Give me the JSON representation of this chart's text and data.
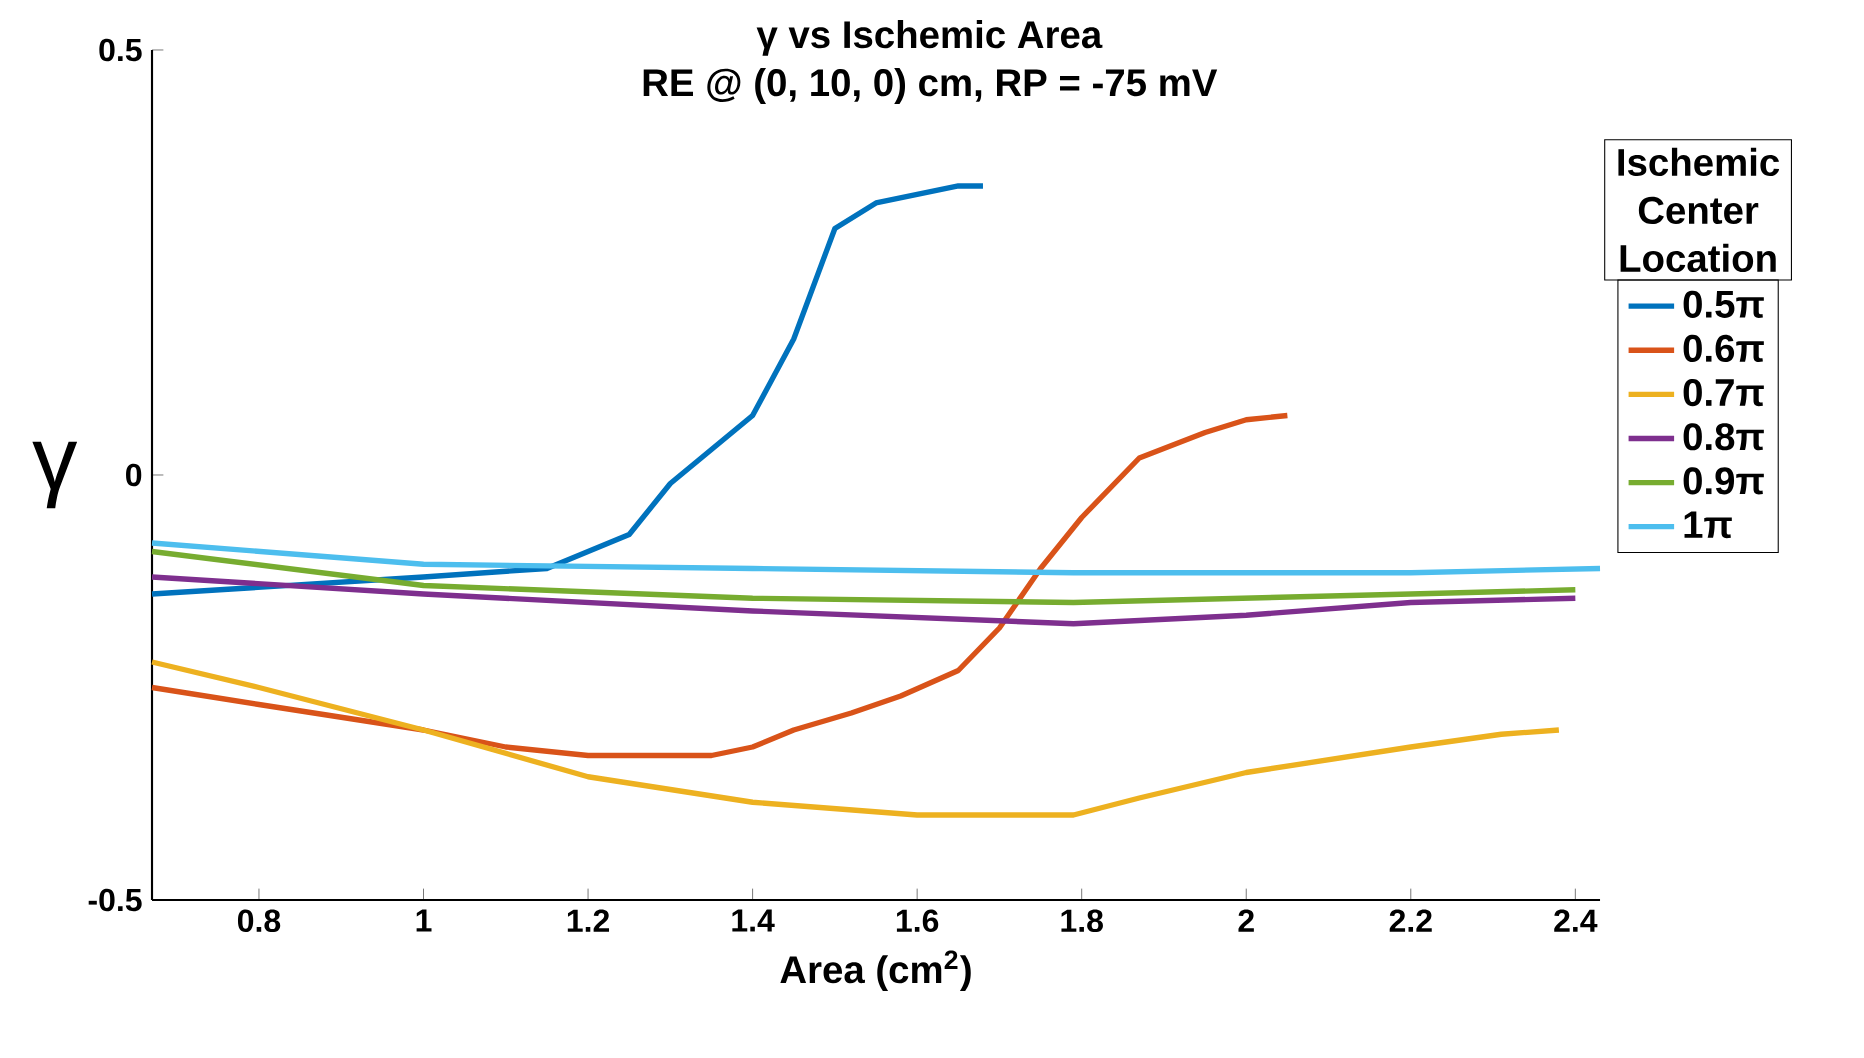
{
  "chart_data": {
    "type": "line",
    "title": "γ vs Ischemic Area",
    "subtitle": "RE @ (0, 10, 0) cm, RP = -75 mV",
    "xlabel": "Area (cm$^{2}$)",
    "ylabel": "γ",
    "legend_title": "Ischemic Center Location",
    "xlim": [
      0.67,
      2.43
    ],
    "ylim": [
      -0.5,
      0.5
    ],
    "xticks": [
      {
        "value": 0.8,
        "label": "0.8"
      },
      {
        "value": 1,
        "label": "1"
      },
      {
        "value": 1.2,
        "label": "1.2"
      },
      {
        "value": 1.4,
        "label": "1.4"
      },
      {
        "value": 1.6,
        "label": "1.6"
      },
      {
        "value": 1.8,
        "label": "1.8"
      },
      {
        "value": 2,
        "label": "2"
      },
      {
        "value": 2.2,
        "label": "2.2"
      },
      {
        "value": 2.4,
        "label": "2.4"
      }
    ],
    "yticks": [
      {
        "value": -0.5,
        "label": "-0.5"
      },
      {
        "value": 0,
        "label": "0"
      },
      {
        "value": 0.5,
        "label": "0.5"
      }
    ],
    "grid": false,
    "legend": "top right",
    "marker": "none",
    "line_style": "solid",
    "series": [
      {
        "name": "0.5π",
        "color": "#0072bd",
        "x": [
          0.67,
          1.0,
          1.15,
          1.2,
          1.25,
          1.3,
          1.35,
          1.4,
          1.45,
          1.5,
          1.55,
          1.6,
          1.65,
          1.68
        ],
        "values": [
          -0.14,
          -0.12,
          -0.11,
          -0.09,
          -0.07,
          -0.01,
          0.03,
          0.07,
          0.16,
          0.29,
          0.32,
          0.33,
          0.34,
          0.34
        ]
      },
      {
        "name": "0.6π",
        "color": "#d95319",
        "x": [
          0.67,
          0.8,
          1.0,
          1.1,
          1.2,
          1.28,
          1.35,
          1.4,
          1.45,
          1.52,
          1.58,
          1.65,
          1.7,
          1.75,
          1.8,
          1.87,
          1.95,
          2.0,
          2.05
        ],
        "values": [
          -0.25,
          -0.27,
          -0.3,
          -0.32,
          -0.33,
          -0.33,
          -0.33,
          -0.32,
          -0.3,
          -0.28,
          -0.26,
          -0.23,
          -0.18,
          -0.11,
          -0.05,
          0.02,
          0.05,
          0.065,
          0.07
        ]
      },
      {
        "name": "0.7π",
        "color": "#edb120",
        "x": [
          0.67,
          0.8,
          1.0,
          1.2,
          1.4,
          1.6,
          1.69,
          1.79,
          1.87,
          2.0,
          2.2,
          2.31,
          2.38
        ],
        "values": [
          -0.22,
          -0.25,
          -0.3,
          -0.355,
          -0.385,
          -0.4,
          -0.4,
          -0.4,
          -0.38,
          -0.35,
          -0.32,
          -0.305,
          -0.3
        ]
      },
      {
        "name": "0.8π",
        "color": "#7e2f8e",
        "x": [
          0.67,
          1.0,
          1.4,
          1.79,
          2.0,
          2.2,
          2.4
        ],
        "values": [
          -0.12,
          -0.14,
          -0.16,
          -0.175,
          -0.165,
          -0.15,
          -0.145
        ]
      },
      {
        "name": "0.9π",
        "color": "#77ac30",
        "x": [
          0.67,
          1.0,
          1.4,
          1.79,
          2.2,
          2.4
        ],
        "values": [
          -0.09,
          -0.13,
          -0.145,
          -0.15,
          -0.14,
          -0.135
        ]
      },
      {
        "name": "1π",
        "color": "#4dbeee",
        "x": [
          0.67,
          1.0,
          1.4,
          1.79,
          2.2,
          2.43
        ],
        "values": [
          -0.08,
          -0.105,
          -0.11,
          -0.115,
          -0.115,
          -0.11
        ]
      }
    ]
  }
}
